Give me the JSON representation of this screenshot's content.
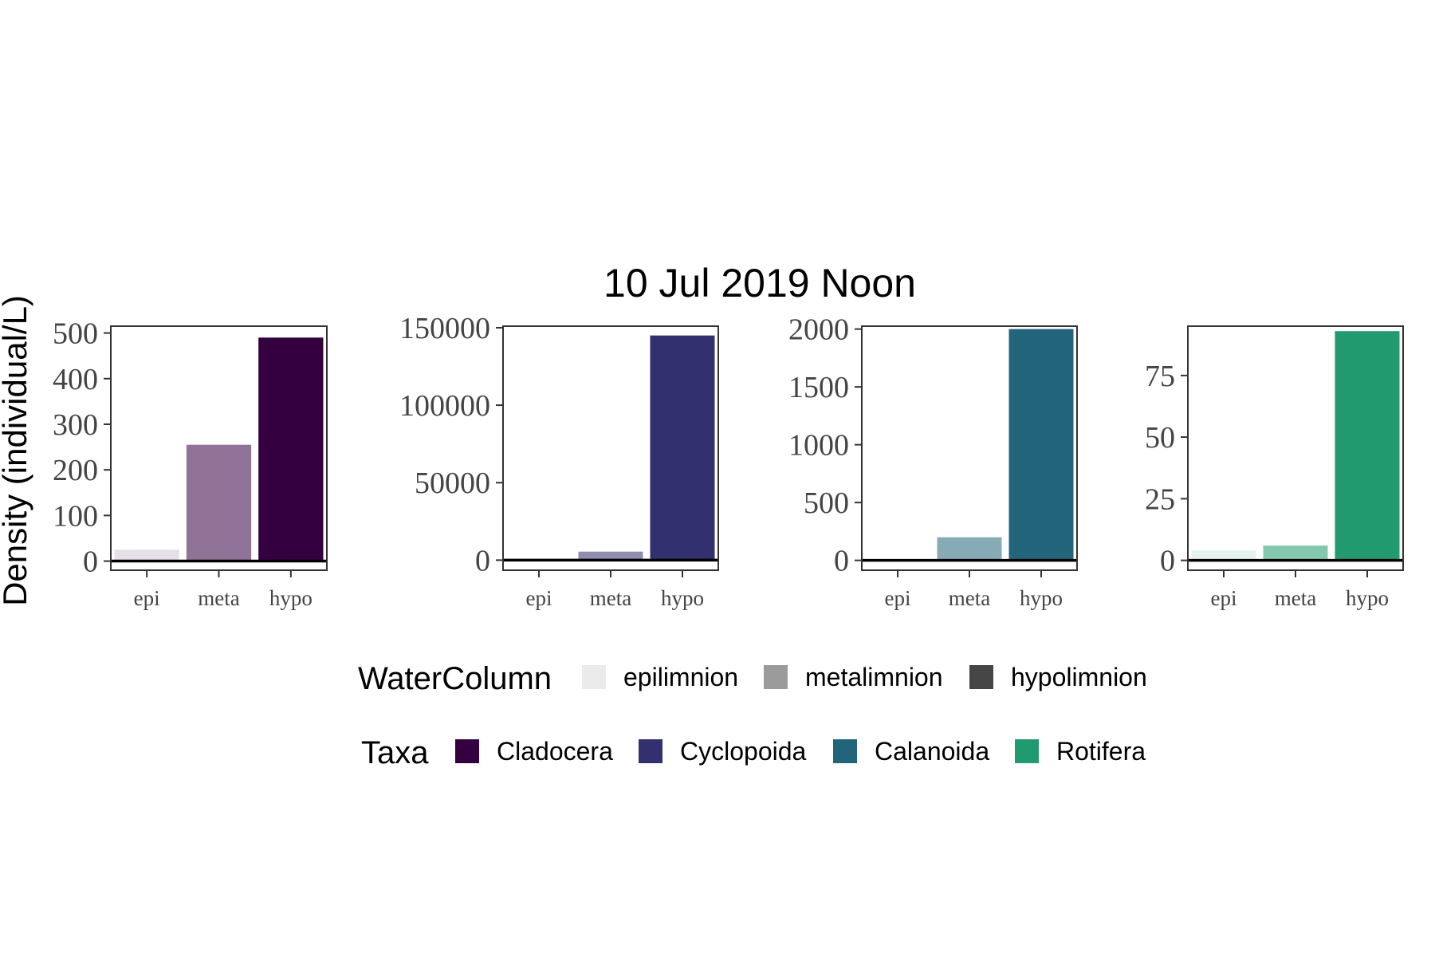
{
  "title": "10 Jul 2019 Noon",
  "ylabel": "Density (individual/L)",
  "legend": {
    "watercolumn": {
      "title": "WaterColumn",
      "items": [
        {
          "label": "epilimnion",
          "color": "#ebebeb"
        },
        {
          "label": "metalimnion",
          "color": "#9b9b9b"
        },
        {
          "label": "hypolimnion",
          "color": "#454545"
        }
      ]
    },
    "taxa": {
      "title": "Taxa",
      "items": [
        {
          "label": "Cladocera",
          "color": "#35003f"
        },
        {
          "label": "Cyclopoida",
          "color": "#33306f"
        },
        {
          "label": "Calanoida",
          "color": "#22647a"
        },
        {
          "label": "Rotifera",
          "color": "#219a6f"
        }
      ]
    }
  },
  "chart_data": [
    {
      "type": "bar",
      "series_name": "Cladocera",
      "color": "#35003f",
      "categories": [
        "epi",
        "meta",
        "hypo"
      ],
      "values": [
        25,
        255,
        490
      ],
      "yticks": [
        0,
        100,
        200,
        300,
        400,
        500
      ],
      "ylim": [
        -20,
        515
      ],
      "bar_opacity": [
        0.12,
        0.55,
        1.0
      ]
    },
    {
      "type": "bar",
      "series_name": "Cyclopoida",
      "color": "#33306f",
      "categories": [
        "epi",
        "meta",
        "hypo"
      ],
      "values": [
        600,
        5500,
        145000
      ],
      "yticks": [
        0,
        50000,
        100000,
        150000
      ],
      "ylim": [
        -6500,
        151000
      ],
      "bar_opacity": [
        0.12,
        0.55,
        1.0
      ]
    },
    {
      "type": "bar",
      "series_name": "Calanoida",
      "color": "#22647a",
      "categories": [
        "epi",
        "meta",
        "hypo"
      ],
      "values": [
        5,
        200,
        2000
      ],
      "yticks": [
        0,
        500,
        1000,
        1500,
        2000
      ],
      "ylim": [
        -85,
        2025
      ],
      "bar_opacity": [
        0.12,
        0.55,
        1.0
      ]
    },
    {
      "type": "bar",
      "series_name": "Rotifera",
      "color": "#219a6f",
      "categories": [
        "epi",
        "meta",
        "hypo"
      ],
      "values": [
        4,
        6,
        93
      ],
      "yticks": [
        0,
        25,
        50,
        75
      ],
      "ylim": [
        -4,
        95
      ],
      "bar_opacity": [
        0.12,
        0.55,
        1.0
      ]
    }
  ]
}
